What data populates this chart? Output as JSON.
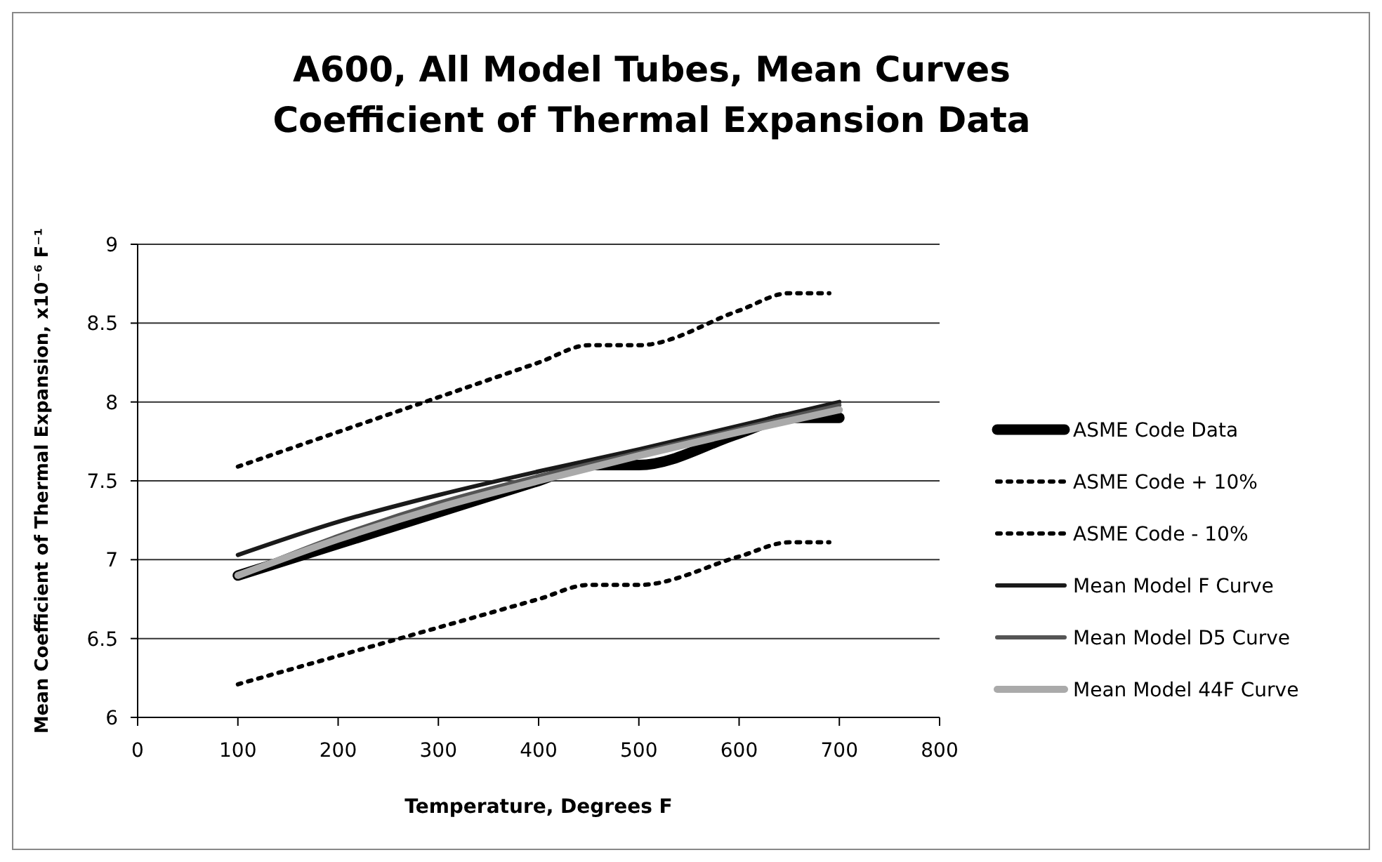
{
  "chart_data": {
    "type": "line",
    "title": "A600, All Model Tubes, Mean Curves\nCoefficient of Thermal Expansion Data",
    "xlabel": "Temperature, Degrees F",
    "ylabel": "Mean Coefficient of Thermal Expansion, x10⁻⁶ F⁻¹",
    "xlim": [
      0,
      800
    ],
    "xticks": [
      0,
      100,
      200,
      300,
      400,
      500,
      600,
      700,
      800
    ],
    "ylim": [
      6,
      9
    ],
    "yticks": [
      6,
      6.5,
      7,
      7.5,
      8,
      8.5,
      9
    ],
    "grid": "y",
    "legend": "right",
    "marker": "none",
    "series": [
      {
        "name": "ASME Code Data",
        "color": "#000000",
        "line_style": "solid",
        "x": [
          100,
          200,
          300,
          400,
          450,
          500,
          600,
          650,
          700
        ],
        "values": [
          6.9,
          7.1,
          7.3,
          7.5,
          7.6,
          7.6,
          7.8,
          7.9,
          7.9
        ]
      },
      {
        "name": "ASME Code + 10%",
        "color": "#000000",
        "line_style": "dotted",
        "x": [
          100,
          200,
          300,
          400,
          450,
          500,
          600,
          650,
          690
        ],
        "values": [
          7.59,
          7.81,
          8.03,
          8.25,
          8.36,
          8.36,
          8.58,
          8.69,
          8.69
        ]
      },
      {
        "name": "ASME Code - 10%",
        "color": "#000000",
        "line_style": "dotted",
        "x": [
          100,
          200,
          300,
          400,
          450,
          500,
          600,
          650,
          690
        ],
        "values": [
          6.21,
          6.39,
          6.57,
          6.75,
          6.84,
          6.84,
          7.02,
          7.11,
          7.11
        ]
      },
      {
        "name": "Mean Model F Curve",
        "color": "#1a1a1a",
        "line_style": "solid",
        "x": [
          100,
          200,
          300,
          400,
          500,
          600,
          700
        ],
        "values": [
          7.03,
          7.24,
          7.41,
          7.56,
          7.7,
          7.85,
          8.0
        ]
      },
      {
        "name": "Mean Model D5 Curve",
        "color": "#555555",
        "line_style": "solid",
        "x": [
          100,
          200,
          300,
          400,
          500,
          600,
          700
        ],
        "values": [
          6.9,
          7.15,
          7.36,
          7.53,
          7.68,
          7.83,
          7.98
        ]
      },
      {
        "name": "Mean Model 44F Curve",
        "color": "#aaaaaa",
        "line_style": "solid",
        "x": [
          100,
          200,
          300,
          400,
          500,
          600,
          700
        ],
        "values": [
          6.9,
          7.13,
          7.33,
          7.5,
          7.66,
          7.81,
          7.95
        ]
      }
    ]
  }
}
